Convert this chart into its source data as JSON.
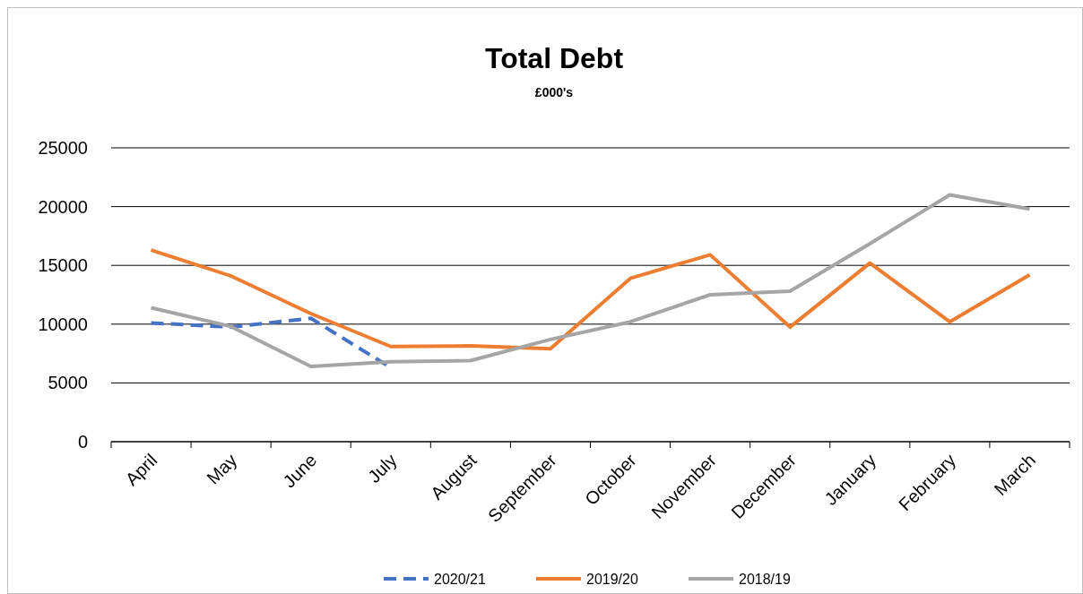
{
  "chart_data": {
    "type": "line",
    "title": "Total Debt",
    "subtitle": "£000's",
    "categories": [
      "April",
      "May",
      "June",
      "July",
      "August",
      "September",
      "October",
      "November",
      "December",
      "January",
      "February",
      "March"
    ],
    "series": [
      {
        "name": "2020/21",
        "color": "#4472c4",
        "line_style": "dashed",
        "values": [
          10100,
          9750,
          10500,
          6300,
          null,
          null,
          null,
          null,
          null,
          null,
          null,
          null
        ]
      },
      {
        "name": "2019/20",
        "color": "#ed7d31",
        "values": [
          16300,
          14100,
          10900,
          8100,
          8150,
          7900,
          13900,
          15900,
          9750,
          15200,
          10200,
          14200
        ]
      },
      {
        "name": "2018/19",
        "color": "#a5a5a5",
        "values": [
          11400,
          9800,
          6400,
          6800,
          6900,
          8700,
          10200,
          12500,
          12800,
          16850,
          21000,
          19800
        ]
      }
    ],
    "ylim": [
      0,
      25000
    ],
    "yticks": [
      0,
      5000,
      10000,
      15000,
      20000,
      25000
    ],
    "grid": "y",
    "legend": "bottom",
    "marker": "none"
  }
}
